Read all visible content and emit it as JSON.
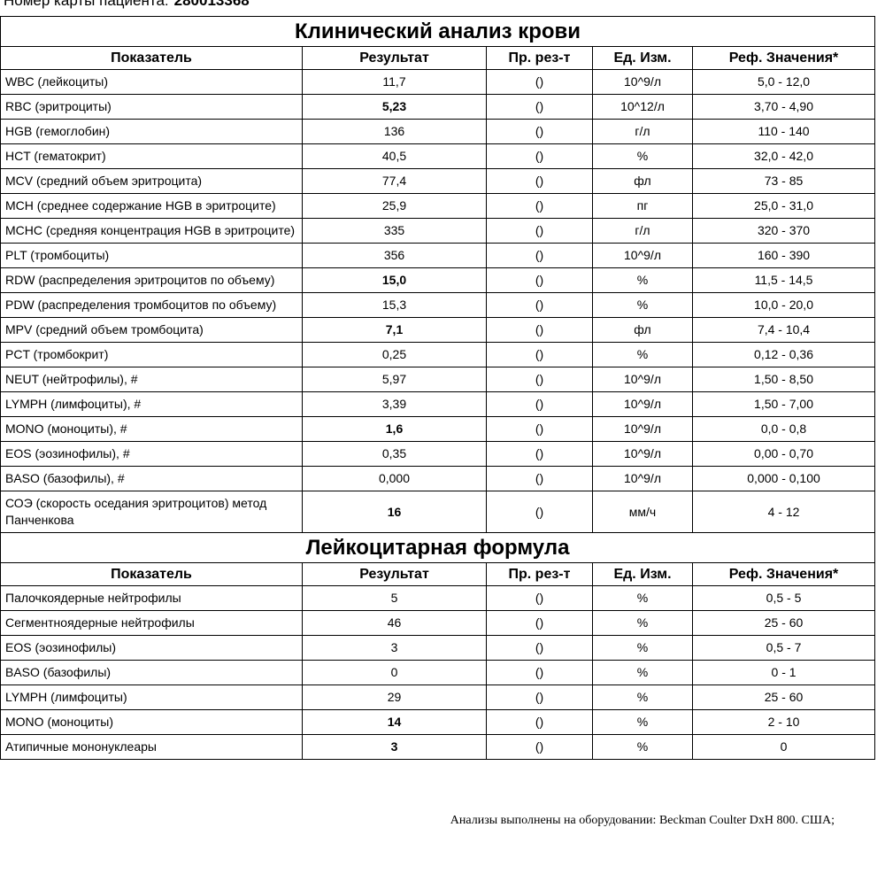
{
  "header": {
    "label": "Номер карты пациента:",
    "value": "280013368"
  },
  "sections": [
    {
      "title": "Клинический анализ крови",
      "columns": [
        "Показатель",
        "Результат",
        "Пр. рез-т",
        "Ед. Изм.",
        "Реф. Значения*"
      ],
      "rows": [
        {
          "cells": [
            "WBC (лейкоциты)",
            "11,7",
            "()",
            "10^9/л",
            "5,0 - 12,0"
          ]
        },
        {
          "cells": [
            "RBC (эритроциты)",
            "5,23",
            "()",
            "10^12/л",
            "3,70 - 4,90"
          ],
          "bold": true
        },
        {
          "cells": [
            "HGB (гемоглобин)",
            "136",
            "()",
            "г/л",
            "110 - 140"
          ]
        },
        {
          "cells": [
            "HCT (гематокрит)",
            "40,5",
            "()",
            "%",
            "32,0 - 42,0"
          ]
        },
        {
          "cells": [
            "MCV (средний объем эритроцита)",
            "77,4",
            "()",
            "фл",
            "73 - 85"
          ]
        },
        {
          "cells": [
            "MCH (среднее содержание HGB в эритроците)",
            "25,9",
            "()",
            "пг",
            "25,0 - 31,0"
          ]
        },
        {
          "cells": [
            "MCHC (средняя концентрация HGB в эритроците)",
            "335",
            "()",
            "г/л",
            "320 - 370"
          ]
        },
        {
          "cells": [
            "PLT (тромбоциты)",
            "356",
            "()",
            "10^9/л",
            "160 - 390"
          ]
        },
        {
          "cells": [
            "RDW (распределения эритроцитов по объему)",
            "15,0",
            "()",
            "%",
            "11,5 - 14,5"
          ],
          "bold": true
        },
        {
          "cells": [
            "PDW (распределения тромбоцитов по объему)",
            "15,3",
            "()",
            "%",
            "10,0 - 20,0"
          ]
        },
        {
          "cells": [
            "MPV (средний объем тромбоцита)",
            "7,1",
            "()",
            "фл",
            "7,4 - 10,4"
          ],
          "bold": true
        },
        {
          "cells": [
            "PCT (тромбокрит)",
            "0,25",
            "()",
            "%",
            "0,12 - 0,36"
          ]
        },
        {
          "cells": [
            "NEUT (нейтрофилы), #",
            "5,97",
            "()",
            "10^9/л",
            "1,50 - 8,50"
          ]
        },
        {
          "cells": [
            "LYMPH (лимфоциты), #",
            "3,39",
            "()",
            "10^9/л",
            "1,50 - 7,00"
          ]
        },
        {
          "cells": [
            "MONO (моноциты), #",
            "1,6",
            "()",
            "10^9/л",
            "0,0 - 0,8"
          ],
          "bold": true
        },
        {
          "cells": [
            "EOS (эозинофилы), #",
            "0,35",
            "()",
            "10^9/л",
            "0,00 - 0,70"
          ]
        },
        {
          "cells": [
            "BASO (базофилы), #",
            "0,000",
            "()",
            "10^9/л",
            "0,000 - 0,100"
          ]
        },
        {
          "cells": [
            "СОЭ (скорость оседания эритроцитов) метод Панченкова",
            "16",
            "()",
            "мм/ч",
            "4 - 12"
          ],
          "bold": true
        }
      ]
    },
    {
      "title": "Лейкоцитарная формула",
      "columns": [
        "Показатель",
        "Результат",
        "Пр. рез-т",
        "Ед. Изм.",
        "Реф. Значения*"
      ],
      "rows": [
        {
          "cells": [
            "Палочкоядерные нейтрофилы",
            "5",
            "()",
            "%",
            "0,5 - 5"
          ]
        },
        {
          "cells": [
            "Сегментноядерные нейтрофилы",
            "46",
            "()",
            "%",
            "25 - 60"
          ]
        },
        {
          "cells": [
            "EOS (эозинофилы)",
            "3",
            "()",
            "%",
            "0,5 - 7"
          ]
        },
        {
          "cells": [
            "BASO (базофилы)",
            "0",
            "()",
            "%",
            "0 - 1"
          ]
        },
        {
          "cells": [
            "LYMPH (лимфоциты)",
            "29",
            "()",
            "%",
            "25 - 60"
          ]
        },
        {
          "cells": [
            "MONO (моноциты)",
            "14",
            "()",
            "%",
            "2 - 10"
          ],
          "bold": true
        },
        {
          "cells": [
            "Атипичные мононуклеары",
            "3",
            "()",
            "%",
            "0"
          ],
          "bold": true
        }
      ]
    }
  ],
  "footer": "Анализы выполнены на оборудовании: Beckman Coulter DxH 800. США;"
}
